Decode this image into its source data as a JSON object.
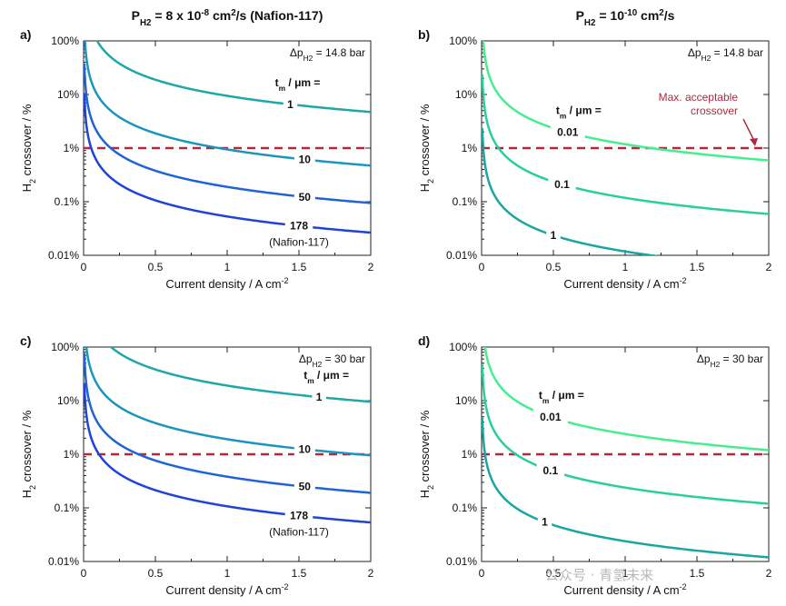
{
  "titles": {
    "left": [
      "P",
      "H2",
      " = 8 x 10",
      "-8",
      " cm",
      "2",
      "/s (Nafion-117)"
    ],
    "right": [
      "P",
      "H2",
      " = 10",
      "-10",
      " cm",
      "2",
      "/s"
    ]
  },
  "watermark": "公众号 · 青氢未来",
  "colors": {
    "reference": "#b02a3c",
    "thick_1": "#1fa7a8",
    "thick_10": "#1a95bf",
    "thick_50": "#1f64d6",
    "thick_178": "#1f43d9",
    "light_001": "#45ee8e",
    "light_01": "#27cf9e",
    "light_1": "#1aa6a0"
  },
  "chart_data": [
    {
      "type": "line",
      "panel": "a)",
      "title": "PH2 = 8 x 10-8 cm2/s (Nafion-117)",
      "xlabel": "Current density / A cm-2",
      "ylabel": "H2 crossover / %",
      "x_ticks": [
        "0",
        "0.5",
        "1",
        "1.5",
        "2"
      ],
      "y_ticks": [
        "0.01%",
        "0.1%",
        "1%",
        "10%",
        "100%"
      ],
      "xlim": [
        0,
        2
      ],
      "ylim": [
        0.01,
        100
      ],
      "yscale": "log",
      "pressure_note": [
        "Δp",
        "H2",
        " = 14.8 bar"
      ],
      "legend_title": [
        "t",
        "m",
        " / μm ="
      ],
      "reference_line": {
        "y": 1,
        "label": ""
      },
      "series": [
        {
          "name": "1",
          "k": 9.43,
          "color": "#1fa7a8"
        },
        {
          "name": "10",
          "k": 0.943,
          "color": "#1a95bf"
        },
        {
          "name": "50",
          "k": 0.189,
          "color": "#1f64d6"
        },
        {
          "name": "178",
          "sub": "(Nafion-117)",
          "k": 0.053,
          "color": "#1f43d9"
        }
      ]
    },
    {
      "type": "line",
      "panel": "b)",
      "title": "PH2 = 10-10 cm2/s",
      "xlabel": "Current density / A cm-2",
      "ylabel": "H2 crossover / %",
      "x_ticks": [
        "0",
        "0.5",
        "1",
        "1.5",
        "2"
      ],
      "y_ticks": [
        "0.01%",
        "0.1%",
        "1%",
        "10%",
        "100%"
      ],
      "xlim": [
        0,
        2
      ],
      "ylim": [
        0.01,
        100
      ],
      "yscale": "log",
      "pressure_note": [
        "Δp",
        "H2",
        " = 14.8 bar"
      ],
      "legend_title": [
        "t",
        "m",
        " / μm ="
      ],
      "reference_line": {
        "y": 1,
        "label": [
          "Max. acceptable",
          "crossover"
        ]
      },
      "series": [
        {
          "name": "0.01",
          "k": 1.18,
          "color": "#45ee8e"
        },
        {
          "name": "0.1",
          "k": 0.118,
          "color": "#27cf9e"
        },
        {
          "name": "1",
          "k": 0.0118,
          "color": "#1aa6a0"
        }
      ]
    },
    {
      "type": "line",
      "panel": "c)",
      "title": "",
      "xlabel": "Current density / A cm-2",
      "ylabel": "H2 crossover / %",
      "x_ticks": [
        "0",
        "0.5",
        "1",
        "1.5",
        "2"
      ],
      "y_ticks": [
        "0.01%",
        "0.1%",
        "1%",
        "10%",
        "100%"
      ],
      "xlim": [
        0,
        2
      ],
      "ylim": [
        0.01,
        100
      ],
      "yscale": "log",
      "pressure_note": [
        "Δp",
        "H2",
        " = 30 bar"
      ],
      "legend_title": [
        "t",
        "m",
        " / μm ="
      ],
      "reference_line": {
        "y": 1,
        "label": ""
      },
      "series": [
        {
          "name": "1",
          "k": 19.1,
          "color": "#1fa7a8"
        },
        {
          "name": "10",
          "k": 1.91,
          "color": "#1a95bf"
        },
        {
          "name": "50",
          "k": 0.382,
          "color": "#1f64d6"
        },
        {
          "name": "178",
          "sub": "(Nafion-117)",
          "k": 0.107,
          "color": "#1f43d9"
        }
      ]
    },
    {
      "type": "line",
      "panel": "d)",
      "title": "",
      "xlabel": "Current density / A cm-2",
      "ylabel": "H2 crossover / %",
      "x_ticks": [
        "0",
        "0.5",
        "1",
        "1.5",
        "2"
      ],
      "y_ticks": [
        "0.01%",
        "0.1%",
        "1%",
        "10%",
        "100%"
      ],
      "xlim": [
        0,
        2
      ],
      "ylim": [
        0.01,
        100
      ],
      "yscale": "log",
      "pressure_note": [
        "Δp",
        "H2",
        " = 30 bar"
      ],
      "legend_title": [
        "t",
        "m",
        " / μm ="
      ],
      "reference_line": {
        "y": 1,
        "label": ""
      },
      "series": [
        {
          "name": "0.01",
          "k": 2.39,
          "color": "#45ee8e"
        },
        {
          "name": "0.1",
          "k": 0.239,
          "color": "#27cf9e"
        },
        {
          "name": "1",
          "k": 0.0239,
          "color": "#1aa6a0"
        }
      ]
    }
  ]
}
